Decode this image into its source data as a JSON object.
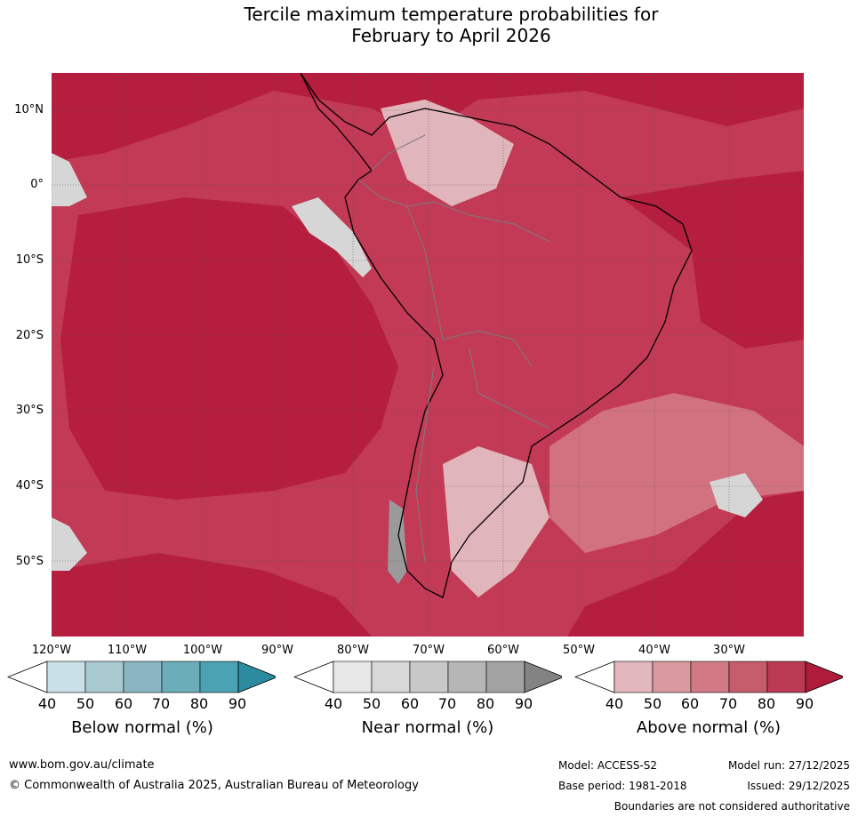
{
  "title": {
    "line1": "Tercile maximum temperature probabilities for",
    "line2": "February to April 2026"
  },
  "map": {
    "latitude_labels": [
      "10°N",
      "0°",
      "10°S",
      "20°S",
      "30°S",
      "40°S",
      "50°S"
    ],
    "longitude_labels": [
      "120°W",
      "110°W",
      "100°W",
      "90°W",
      "80°W",
      "70°W",
      "60°W",
      "50°W",
      "40°W",
      "30°W"
    ],
    "colors": {
      "ocean_main": "#c23a55",
      "ocean_dark": "#b51e3e",
      "mid": "#d27180",
      "light": "#e1b5bc",
      "near_normal": "#d6d6d6"
    }
  },
  "legends": [
    {
      "title": "Below normal (%)",
      "ticks": [
        "40",
        "50",
        "60",
        "70",
        "80",
        "90"
      ],
      "colors": [
        "#ffffff",
        "#c8e0e6",
        "#a8c9d0",
        "#89b6c1",
        "#6cadba",
        "#4aa2b3",
        "#2d8ba0"
      ]
    },
    {
      "title": "Near normal (%)",
      "ticks": [
        "40",
        "50",
        "60",
        "70",
        "80",
        "90"
      ],
      "colors": [
        "#ffffff",
        "#e7e7e7",
        "#d8d8d8",
        "#c8c8c8",
        "#b6b6b6",
        "#a2a2a2",
        "#838383"
      ]
    },
    {
      "title": "Above normal (%)",
      "ticks": [
        "40",
        "50",
        "60",
        "70",
        "80",
        "90"
      ],
      "colors": [
        "#ffffff",
        "#e2b7bd",
        "#d9999f",
        "#d17a85",
        "#c65d6c",
        "#bb3a53",
        "#af1b3b"
      ]
    }
  ],
  "footer": {
    "website": "www.bom.gov.au/climate",
    "copyright": "© Commonwealth of Australia 2025, Australian Bureau of Meteorology",
    "model": "Model: ACCESS-S2",
    "model_run": "Model run: 27/12/2025",
    "base_period": "Base period: 1981-2018",
    "issued": "Issued: 29/12/2025",
    "disclaimer": "Boundaries are not considered authoritative"
  }
}
